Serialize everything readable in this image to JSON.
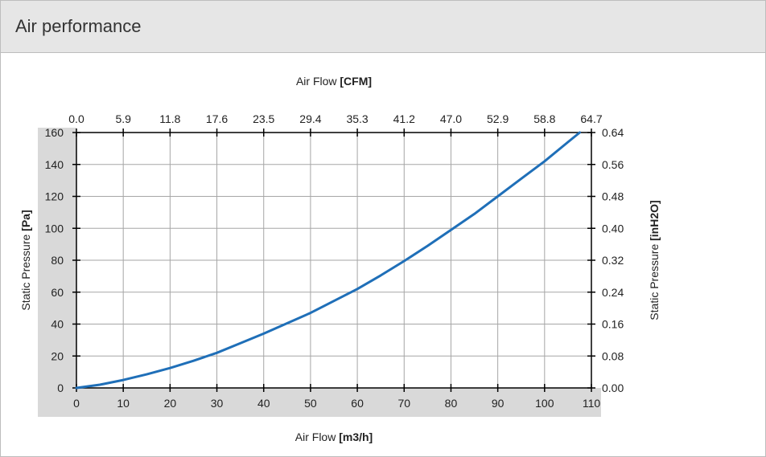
{
  "panel": {
    "title": "Air performance"
  },
  "chart_data": {
    "type": "line",
    "x_bottom": {
      "label": "Air Flow",
      "unit": "[m3/h]",
      "range": [
        0,
        110
      ],
      "ticks": [
        0,
        10,
        20,
        30,
        40,
        50,
        60,
        70,
        80,
        90,
        100,
        110
      ]
    },
    "x_top": {
      "label": "Air Flow",
      "unit": "[CFM]",
      "tick_labels": [
        "0.0",
        "5.9",
        "11.8",
        "17.6",
        "23.5",
        "29.4",
        "35.3",
        "41.2",
        "47.0",
        "52.9",
        "58.8",
        "64.7"
      ]
    },
    "y_left": {
      "label": "Static Pressure",
      "unit": "[Pa]",
      "range": [
        0,
        160
      ],
      "ticks": [
        0,
        20,
        40,
        60,
        80,
        100,
        120,
        140,
        160
      ]
    },
    "y_right": {
      "label": "Static Pressure",
      "unit": "[inH2O]",
      "tick_labels": [
        "0.00",
        "0.08",
        "0.16",
        "0.24",
        "0.32",
        "0.40",
        "0.48",
        "0.56",
        "0.64"
      ]
    },
    "grid": true,
    "series": [
      {
        "color": "#1f6fb8",
        "x": [
          0,
          5,
          10,
          15,
          20,
          25,
          30,
          35,
          40,
          45,
          50,
          55,
          60,
          65,
          70,
          75,
          80,
          85,
          90,
          95,
          100,
          105,
          107.5
        ],
        "y": [
          0,
          2,
          5,
          8.5,
          12.5,
          17,
          22,
          28,
          34,
          40.5,
          47,
          54.5,
          62,
          70.5,
          79.5,
          89,
          99,
          109,
          120,
          131,
          142,
          154,
          160
        ]
      }
    ]
  }
}
